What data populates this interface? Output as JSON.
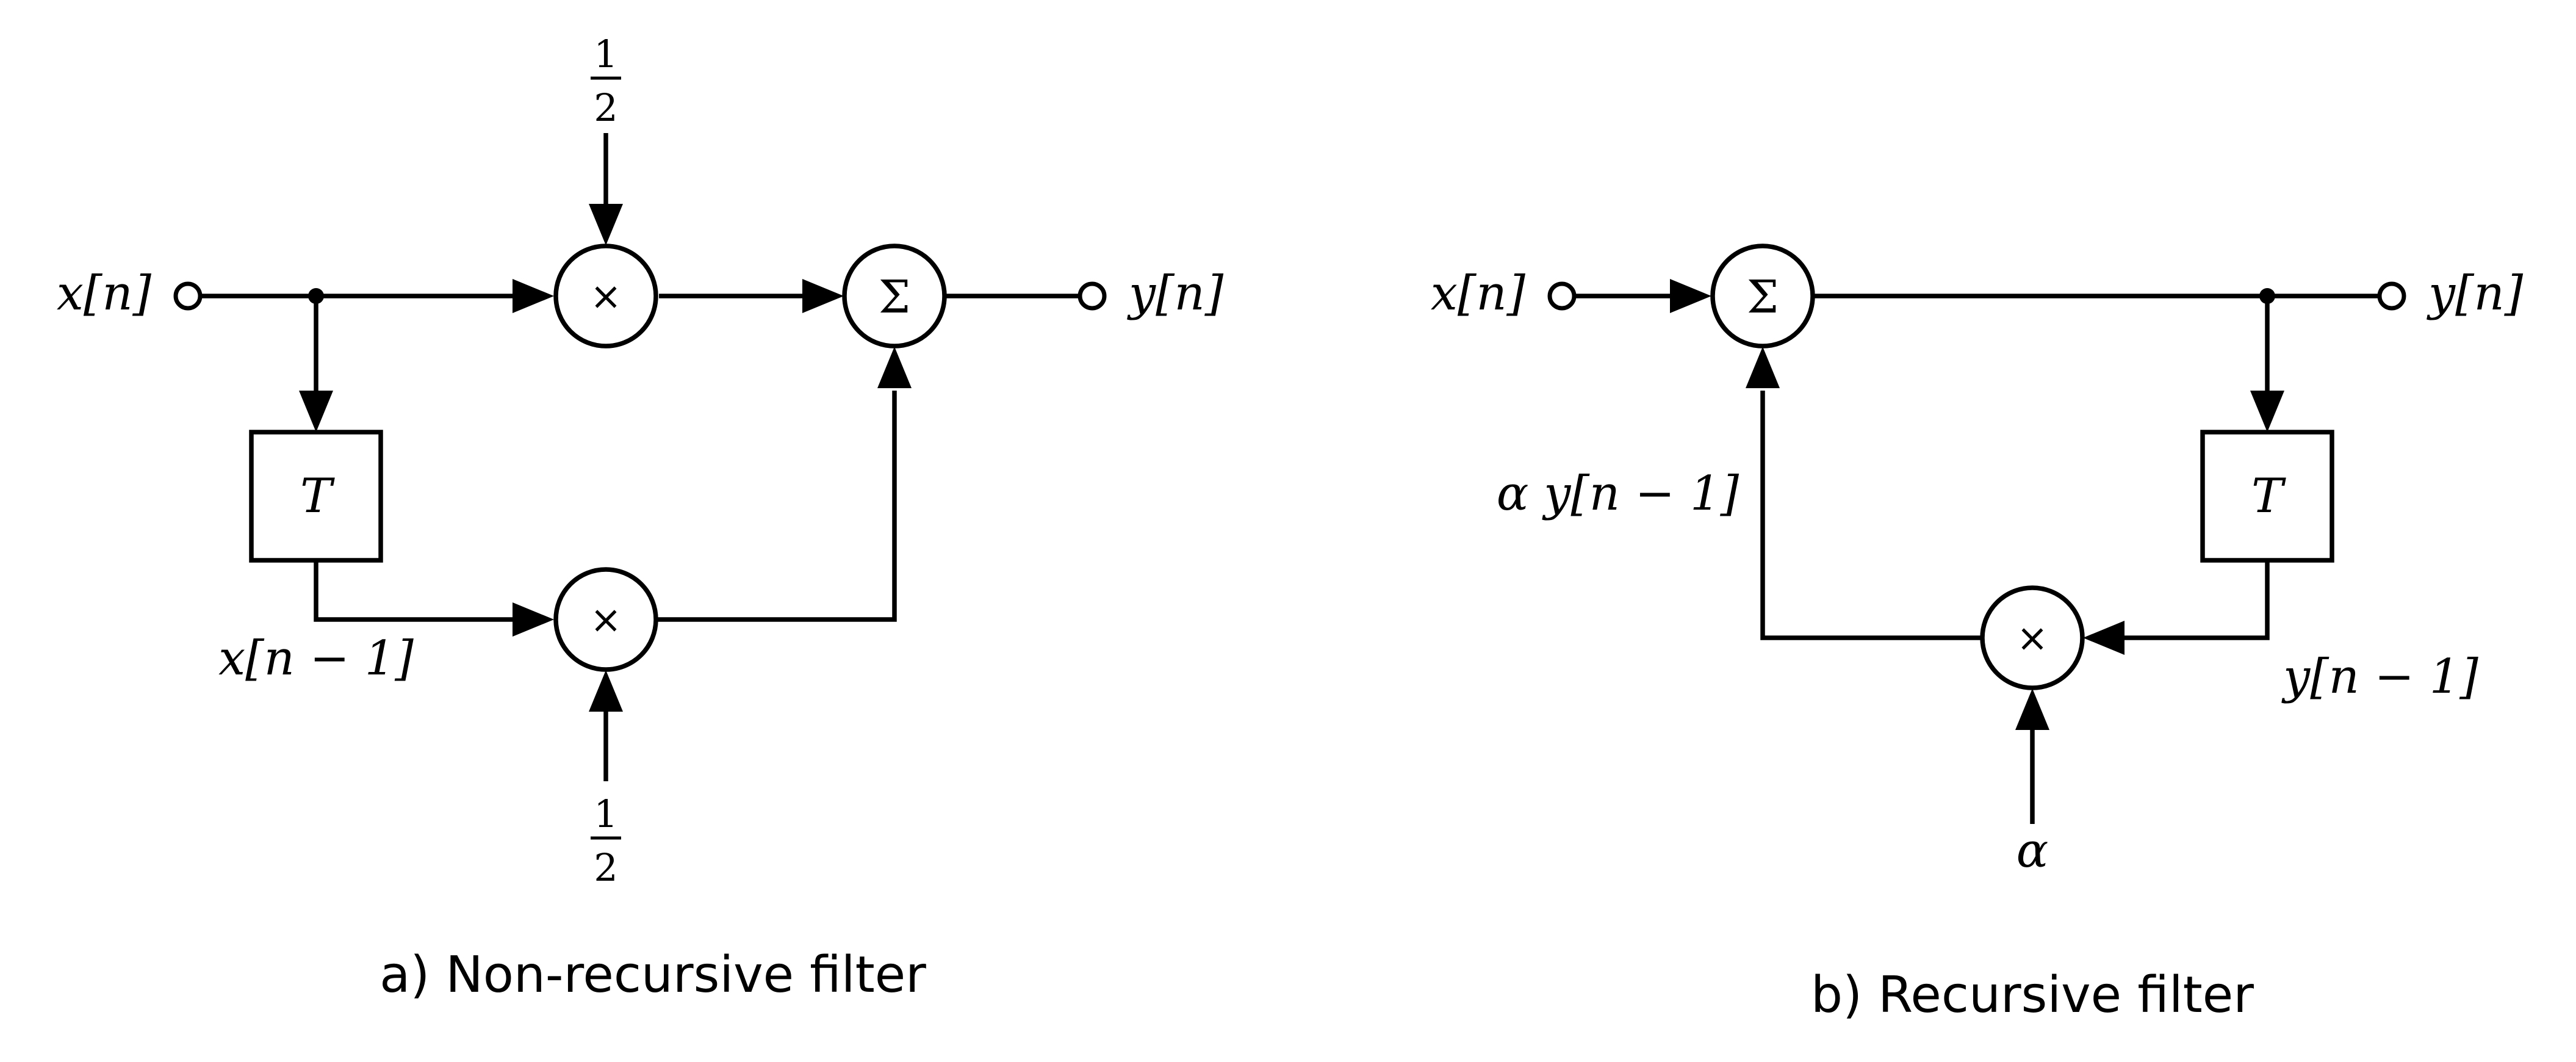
{
  "colors": {
    "ink": "#000000",
    "background": "#ffffff"
  },
  "icons": {
    "multiplier": "circle-with-times",
    "adder": "circle-with-sigma",
    "delay": "square-with-T",
    "terminal": "open-circle",
    "junction": "filled-dot"
  },
  "symbols": {
    "times": "×",
    "sigma": "Σ"
  },
  "nonrecursive": {
    "caption": "a) Non-recursive filter",
    "input_label": "x[n]",
    "output_label": "y[n]",
    "delay_label": "T",
    "delayed_label": "x[n − 1]",
    "top_gain_numerator": "1",
    "top_gain_denominator": "2",
    "bottom_gain_numerator": "1",
    "bottom_gain_denominator": "2"
  },
  "recursive": {
    "caption": "b) Recursive filter",
    "input_label": "x[n]",
    "output_label": "y[n]",
    "delay_label": "T",
    "feedback_label": "α y[n − 1]",
    "delayed_label": "y[n − 1]",
    "gain_label": "α"
  }
}
